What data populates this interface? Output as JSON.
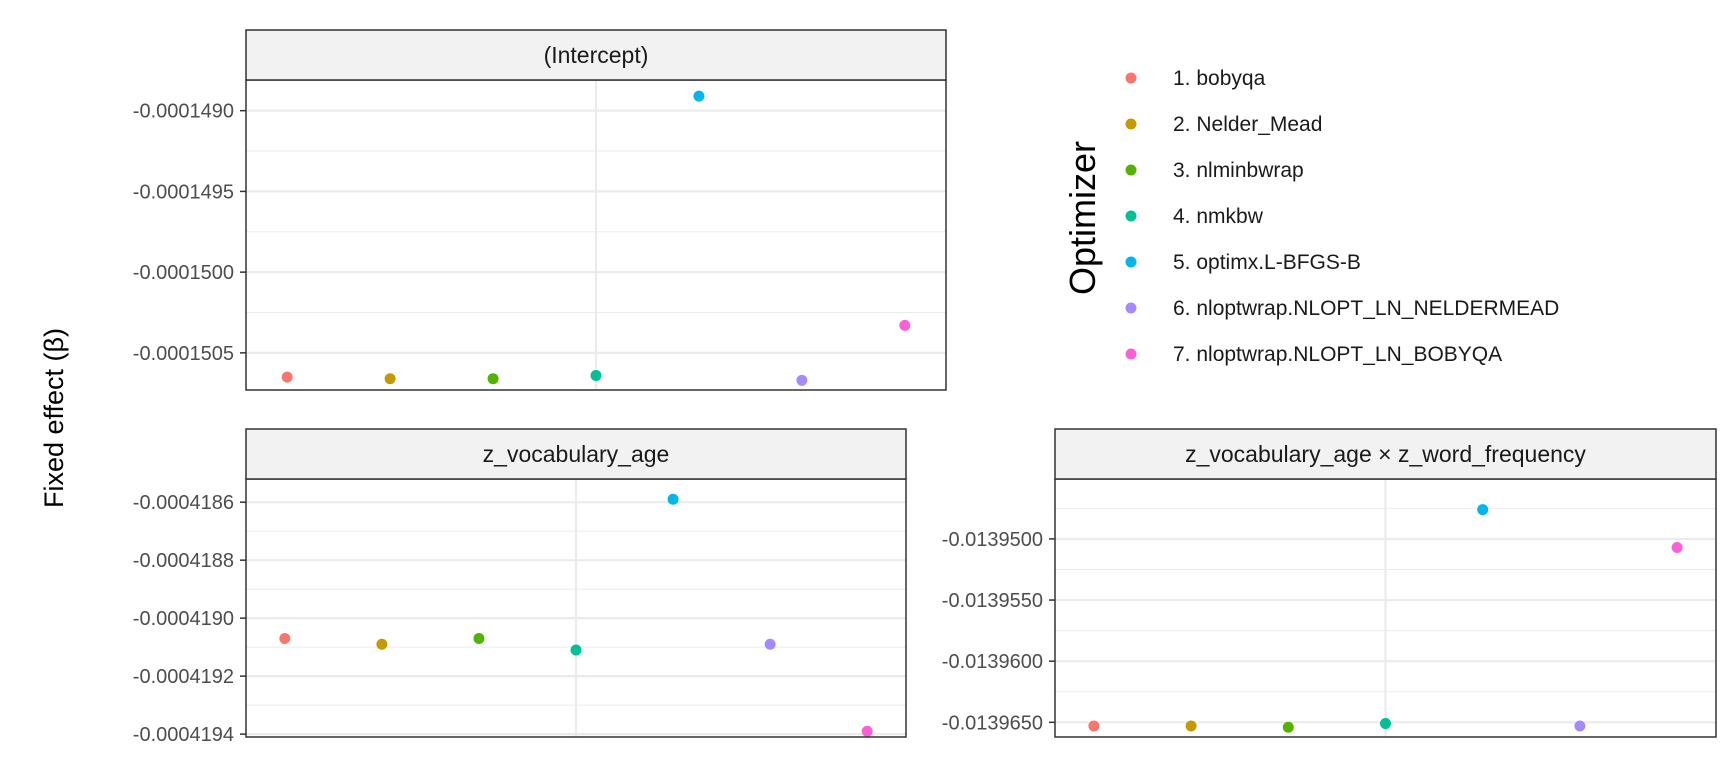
{
  "chart_data": {
    "type": "scatter",
    "ylabel": "Fixed effect (β)",
    "legend": {
      "title": "Optimizer",
      "placement": "right",
      "entries": [
        {
          "label": "1. bobyqa",
          "color": "#F8766D"
        },
        {
          "label": "2. Nelder_Mead",
          "color": "#C49A00"
        },
        {
          "label": "3. nlminbwrap",
          "color": "#53B400"
        },
        {
          "label": "4. nmkbw",
          "color": "#00C094"
        },
        {
          "label": "5. optimx.L-BFGS-B",
          "color": "#00B6EB"
        },
        {
          "label": "6. nloptwrap.NLOPT_LN_NELDERMEAD",
          "color": "#A58AFF"
        },
        {
          "label": "7. nloptwrap.NLOPT_LN_BOBYQA",
          "color": "#FB61D7"
        }
      ]
    },
    "panels": [
      {
        "title": "(Intercept)",
        "ylim": [
          -0.00015073,
          -0.00014881
        ],
        "ticks": [
          {
            "value": -0.000149,
            "label": "-0.0001490"
          },
          {
            "value": -0.0001495,
            "label": "-0.0001495"
          },
          {
            "value": -0.00015,
            "label": "-0.0001500"
          },
          {
            "value": -0.0001505,
            "label": "-0.0001505"
          }
        ],
        "x": [
          1,
          2,
          3,
          4,
          5,
          6,
          7
        ],
        "values": [
          -0.00015065,
          -0.00015066,
          -0.00015066,
          -0.00015064,
          -0.00014891,
          -0.00015067,
          -0.00015033
        ]
      },
      {
        "title": "z_vocabulary_age",
        "ylim": [
          -0.00041941,
          -0.00041852
        ],
        "ticks": [
          {
            "value": -0.0004186,
            "label": "-0.0004186"
          },
          {
            "value": -0.0004188,
            "label": "-0.0004188"
          },
          {
            "value": -0.000419,
            "label": "-0.0004190"
          },
          {
            "value": -0.0004192,
            "label": "-0.0004192"
          },
          {
            "value": -0.0004194,
            "label": "-0.0004194"
          }
        ],
        "x": [
          1,
          2,
          3,
          4,
          5,
          6,
          7
        ],
        "values": [
          -0.00041907,
          -0.00041909,
          -0.00041907,
          -0.00041911,
          -0.00041859,
          -0.00041909,
          -0.00041939
        ]
      },
      {
        "title": "z_vocabulary_age × z_word_frequency",
        "ylim": [
          -0.0139662,
          -0.0139451
        ],
        "ticks": [
          {
            "value": -0.01395,
            "label": "-0.0139500"
          },
          {
            "value": -0.013955,
            "label": "-0.0139550"
          },
          {
            "value": -0.01396,
            "label": "-0.0139600"
          },
          {
            "value": -0.013965,
            "label": "-0.0139650"
          }
        ],
        "x": [
          1,
          2,
          3,
          4,
          5,
          6,
          7
        ],
        "values": [
          -0.0139653,
          -0.0139653,
          -0.0139654,
          -0.0139651,
          -0.0139476,
          -0.0139653,
          -0.0139507
        ]
      }
    ]
  }
}
